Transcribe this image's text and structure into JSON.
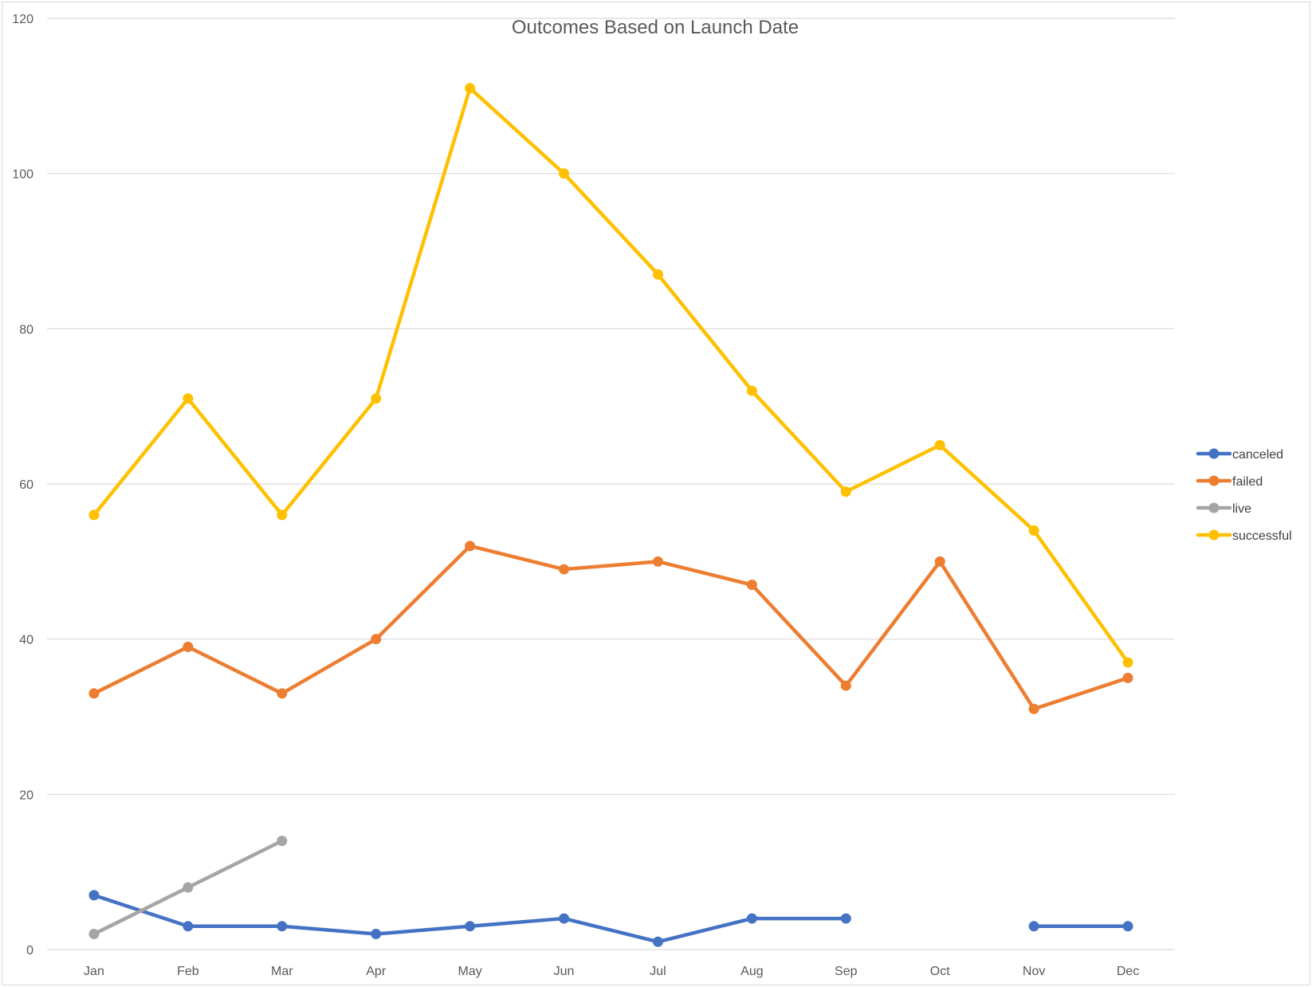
{
  "chart_data": {
    "type": "line",
    "title": "Outcomes Based on Launch Date",
    "xlabel": "",
    "ylabel": "",
    "categories": [
      "Jan",
      "Feb",
      "Mar",
      "Apr",
      "May",
      "Jun",
      "Jul",
      "Aug",
      "Sep",
      "Oct",
      "Nov",
      "Dec"
    ],
    "ylim": [
      0,
      120
    ],
    "yticks": [
      0,
      20,
      40,
      60,
      80,
      100,
      120
    ],
    "grid": true,
    "legend": "right",
    "series": [
      {
        "name": "canceled",
        "color": "#4472C4",
        "values": [
          7,
          3,
          3,
          2,
          3,
          4,
          1,
          4,
          4,
          null,
          3,
          3
        ]
      },
      {
        "name": "failed",
        "color": "#ED7D31",
        "values": [
          33,
          39,
          33,
          40,
          52,
          49,
          50,
          47,
          34,
          50,
          31,
          35
        ]
      },
      {
        "name": "live",
        "color": "#A5A5A5",
        "values": [
          2,
          8,
          14,
          null,
          null,
          null,
          null,
          null,
          null,
          null,
          null,
          null
        ]
      },
      {
        "name": "successful",
        "color": "#FFC000",
        "values": [
          56,
          71,
          56,
          71,
          111,
          100,
          87,
          72,
          59,
          65,
          54,
          37
        ]
      }
    ]
  }
}
